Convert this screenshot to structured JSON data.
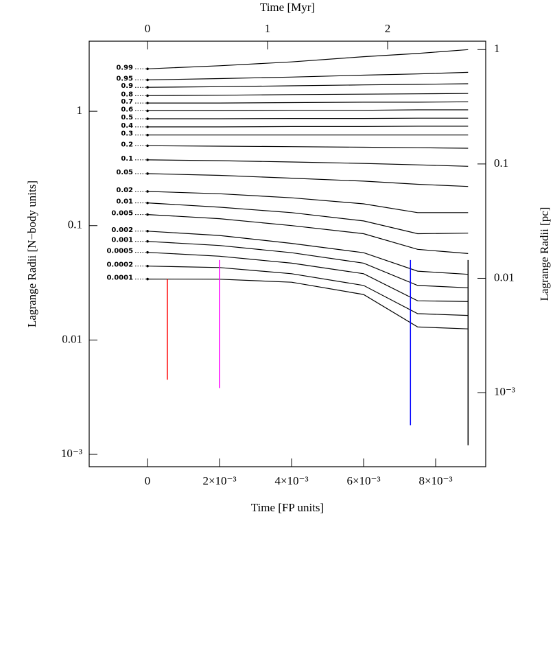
{
  "chart_data": {
    "type": "line",
    "xlabel": "Time [FP units]",
    "ylabel": "Lagrange Radii [N−body units]",
    "x2label": "Time [Myr]",
    "y2label": "Lagrange Radii [pc]",
    "log_y": true,
    "xlim": [
      -0.00162,
      0.00939
    ],
    "ylim": [
      0.00078,
      4.1
    ],
    "x2lim": [
      -0.486,
      2.817
    ],
    "y2lim": [
      0.000225,
      1.185
    ],
    "xticks": [
      0,
      {
        "value": 0.002,
        "label": "2×10⁻³"
      },
      {
        "value": 0.004,
        "label": "4×10⁻³"
      },
      {
        "value": 0.006,
        "label": "6×10⁻³"
      },
      {
        "value": 0.008,
        "label": "8×10⁻³"
      }
    ],
    "yticks": [
      1,
      0.1,
      0.01,
      {
        "value": 0.001,
        "label": "10⁻³"
      }
    ],
    "x2ticks": [
      0,
      1,
      2
    ],
    "y2ticks": [
      1,
      0.1,
      0.01,
      {
        "value": 0.001,
        "label": "10⁻³"
      }
    ],
    "x": [
      0,
      0.002,
      0.004,
      0.006,
      0.0075,
      0.0089
    ],
    "series": [
      {
        "name": "0.99",
        "color": "#000000",
        "values": [
          2.35,
          2.5,
          2.7,
          3.0,
          3.2,
          3.46
        ]
      },
      {
        "name": "0.95",
        "color": "#000000",
        "values": [
          1.88,
          1.93,
          1.99,
          2.07,
          2.12,
          2.19
        ]
      },
      {
        "name": "0.9",
        "color": "#000000",
        "values": [
          1.62,
          1.64,
          1.67,
          1.7,
          1.72,
          1.74
        ]
      },
      {
        "name": "0.8",
        "color": "#000000",
        "values": [
          1.37,
          1.38,
          1.4,
          1.41,
          1.42,
          1.43
        ]
      },
      {
        "name": "0.7",
        "color": "#000000",
        "values": [
          1.18,
          1.18,
          1.19,
          1.2,
          1.2,
          1.21
        ]
      },
      {
        "name": "0.6",
        "color": "#000000",
        "values": [
          1.01,
          1.01,
          1.02,
          1.02,
          1.03,
          1.03
        ]
      },
      {
        "name": "0.5",
        "color": "#000000",
        "values": [
          0.86,
          0.86,
          0.865,
          0.865,
          0.87,
          0.87
        ]
      },
      {
        "name": "0.4",
        "color": "#000000",
        "values": [
          0.73,
          0.73,
          0.735,
          0.735,
          0.74,
          0.74
        ]
      },
      {
        "name": "0.3",
        "color": "#000000",
        "values": [
          0.62,
          0.62,
          0.62,
          0.62,
          0.62,
          0.62
        ]
      },
      {
        "name": "0.2",
        "color": "#000000",
        "values": [
          0.5,
          0.495,
          0.49,
          0.485,
          0.48,
          0.475
        ]
      },
      {
        "name": "0.1",
        "color": "#000000",
        "values": [
          0.376,
          0.37,
          0.36,
          0.35,
          0.34,
          0.33
        ]
      },
      {
        "name": "0.05",
        "color": "#000000",
        "values": [
          0.285,
          0.275,
          0.26,
          0.245,
          0.23,
          0.22
        ]
      },
      {
        "name": "0.02",
        "color": "#000000",
        "values": [
          0.199,
          0.19,
          0.175,
          0.155,
          0.13,
          0.13
        ]
      },
      {
        "name": "0.01",
        "color": "#000000",
        "values": [
          0.158,
          0.145,
          0.13,
          0.11,
          0.085,
          0.086
        ]
      },
      {
        "name": "0.005",
        "color": "#000000",
        "values": [
          0.125,
          0.115,
          0.1,
          0.085,
          0.062,
          0.057
        ]
      },
      {
        "name": "0.002",
        "color": "#000000",
        "values": [
          0.0895,
          0.082,
          0.07,
          0.058,
          0.04,
          0.0375
        ]
      },
      {
        "name": "0.001",
        "color": "#000000",
        "values": [
          0.0728,
          0.067,
          0.058,
          0.047,
          0.03,
          0.0286
        ]
      },
      {
        "name": "0.0005",
        "color": "#000000",
        "values": [
          0.0584,
          0.054,
          0.047,
          0.038,
          0.022,
          0.0217
        ]
      },
      {
        "name": "0.0002",
        "color": "#000000",
        "values": [
          0.0443,
          0.043,
          0.038,
          0.03,
          0.017,
          0.0164
        ]
      },
      {
        "name": "0.0001",
        "color": "#000000",
        "values": [
          0.0341,
          0.034,
          0.032,
          0.025,
          0.013,
          0.0125
        ]
      }
    ],
    "collapses": [
      {
        "color": "#ff0000",
        "x": [
          0.00055,
          0.00055
        ],
        "values": [
          0.034,
          0.0045
        ]
      },
      {
        "color": "#ff00ff",
        "x": [
          0.002,
          0.002
        ],
        "values": [
          0.05,
          0.0038
        ]
      },
      {
        "color": "#0000ff",
        "x": [
          0.0073,
          0.0073
        ],
        "values": [
          0.05,
          0.0018
        ]
      },
      {
        "color": "#000000",
        "x": [
          0.0089,
          0.0089
        ],
        "values": [
          0.05,
          0.0012
        ]
      }
    ]
  }
}
